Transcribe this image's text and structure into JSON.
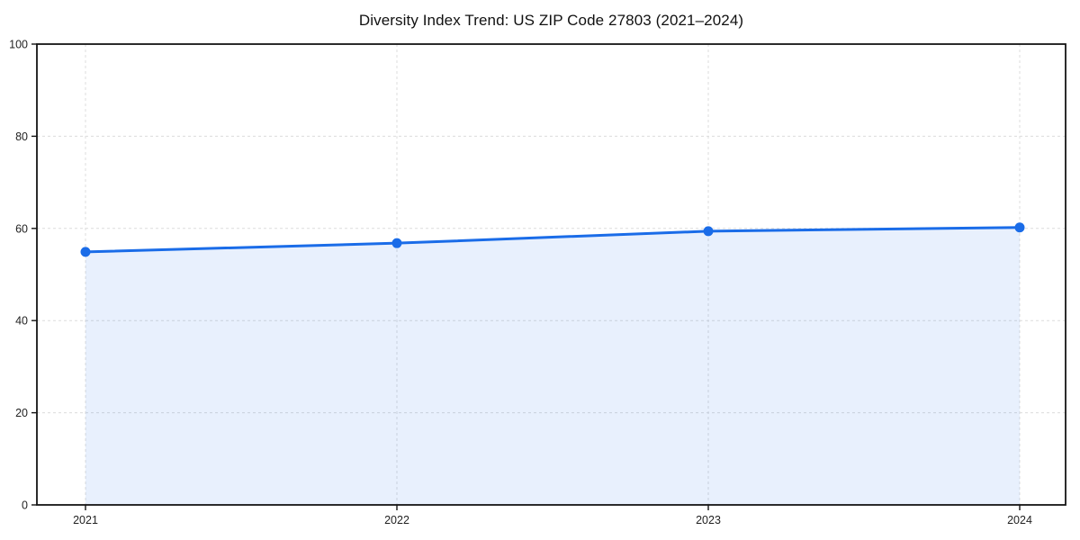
{
  "chart_data": {
    "type": "area",
    "title": "Diversity Index Trend: US ZIP Code 27803 (2021–2024)",
    "xlabel": "",
    "ylabel": "",
    "x": [
      2021,
      2022,
      2023,
      2024
    ],
    "xticks": [
      "2021",
      "2022",
      "2023",
      "2024"
    ],
    "series": [
      {
        "name": "Diversity Index",
        "values": [
          54.9,
          56.8,
          59.4,
          60.2
        ]
      }
    ],
    "ylim": [
      0,
      100
    ],
    "yticks": [
      0,
      20,
      40,
      60,
      80,
      100
    ],
    "grid": "dashed-both-axes",
    "legend": "none",
    "colors": {
      "line": "#1a6ce8",
      "marker": "#1a6ce8",
      "fill": "#1a6ce8",
      "fill_opacity": 0.1,
      "grid": "#dcdcdc",
      "spine": "#141414",
      "tick_label": "#222222",
      "title": "#111111",
      "background": "#ffffff"
    }
  }
}
